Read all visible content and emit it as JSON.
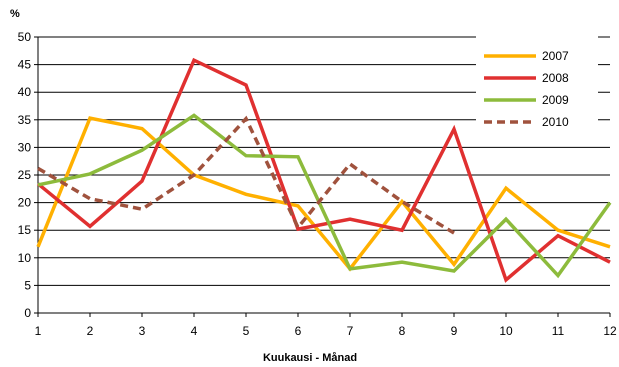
{
  "chart_data": {
    "type": "line",
    "title": "",
    "xlabel": "Kuukausi - Månad",
    "ylabel": "%",
    "x": [
      1,
      2,
      3,
      4,
      5,
      6,
      7,
      8,
      9,
      10,
      11,
      12
    ],
    "x_tick_labels": [
      "1",
      "2",
      "3",
      "4",
      "5",
      "6",
      "7",
      "8",
      "9",
      "10",
      "11",
      "12"
    ],
    "y_tick_labels": [
      "0",
      "5",
      "10",
      "15",
      "20",
      "25",
      "30",
      "35",
      "40",
      "45",
      "50"
    ],
    "ylim": [
      0,
      50
    ],
    "grid": "horizontal",
    "legend_position": "top-right",
    "series": [
      {
        "name": "2007",
        "color": "#FFB000",
        "dashed": false,
        "values": [
          12,
          35.3,
          33.4,
          25,
          21.5,
          19.4,
          8,
          20.2,
          8.8,
          22.6,
          15,
          12
        ]
      },
      {
        "name": "2008",
        "color": "#E03030",
        "dashed": false,
        "values": [
          23.4,
          15.7,
          23.9,
          45.8,
          41.3,
          15.2,
          17,
          15,
          33.3,
          6,
          14,
          9.2
        ]
      },
      {
        "name": "2009",
        "color": "#8DBB3C",
        "dashed": false,
        "values": [
          23.2,
          25.2,
          29.5,
          35.8,
          28.5,
          28.3,
          8,
          9.2,
          7.6,
          17,
          6.8,
          20
        ]
      },
      {
        "name": "2010",
        "color": "#A0523D",
        "dashed": true,
        "values": [
          26.2,
          20.7,
          18.8,
          25,
          35.2,
          15.5,
          27,
          20.2,
          14.5,
          null,
          null,
          null
        ]
      }
    ]
  }
}
